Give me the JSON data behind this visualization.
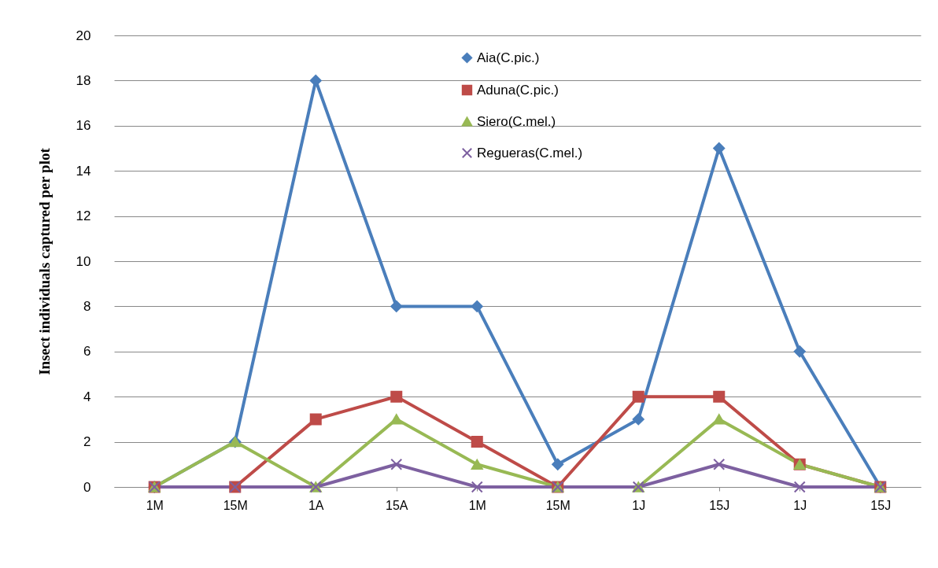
{
  "chart_data": {
    "type": "line",
    "ylabel": "Insect  individuals captured per plot",
    "categories": [
      "1M",
      "15M",
      "1A",
      "15A",
      "1M",
      "15M",
      "1J",
      "15J",
      "1J",
      "15J"
    ],
    "series": [
      {
        "name": "Aia(C.pic.)",
        "color": "#4a7ebb",
        "marker": "diamond",
        "values": [
          0,
          2,
          18,
          8,
          8,
          1,
          3,
          15,
          6,
          0
        ]
      },
      {
        "name": "Aduna(C.pic.)",
        "color": "#be4b48",
        "marker": "square",
        "values": [
          0,
          0,
          3,
          4,
          2,
          0,
          4,
          4,
          1,
          0
        ]
      },
      {
        "name": "Siero(C.mel.)",
        "color": "#98b954",
        "marker": "triangle",
        "values": [
          0,
          2,
          0,
          3,
          1,
          0,
          0,
          3,
          1,
          0
        ]
      },
      {
        "name": "Regueras(C.mel.)",
        "color": "#7d60a0",
        "marker": "cross",
        "values": [
          0,
          0,
          0,
          1,
          0,
          0,
          0,
          1,
          0,
          0
        ]
      }
    ],
    "ylim": [
      0,
      20
    ],
    "yticks": [
      0,
      2,
      4,
      6,
      8,
      10,
      12,
      14,
      16,
      18,
      20
    ],
    "grid": "y",
    "legend": "top right"
  }
}
